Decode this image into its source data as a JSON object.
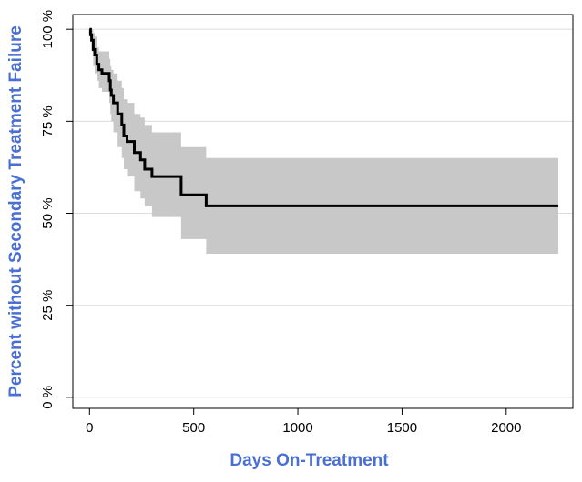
{
  "chart_data": {
    "type": "line",
    "title": "",
    "xlabel": "Days  On-Treatment",
    "ylabel": "Percent without Secondary Treatment Failure",
    "xlim": [
      -80,
      2320
    ],
    "ylim": [
      -3,
      104
    ],
    "x_ticks": [
      {
        "value": 0,
        "label": "0"
      },
      {
        "value": 500,
        "label": "500"
      },
      {
        "value": 1000,
        "label": "1000"
      },
      {
        "value": 1500,
        "label": "1500"
      },
      {
        "value": 2000,
        "label": "2000"
      }
    ],
    "y_ticks": [
      {
        "value": 0,
        "label": "0 %"
      },
      {
        "value": 25,
        "label": "25 %"
      },
      {
        "value": 50,
        "label": "50 %"
      },
      {
        "value": 75,
        "label": "75 %"
      },
      {
        "value": 100,
        "label": "100 %"
      }
    ],
    "grid": "horizontal",
    "colors": {
      "axis_title": "#4a6fd4",
      "survival_line": "#000000",
      "confidence_band": "#c8c8c8",
      "grid": "#dcdcdc"
    },
    "series": [
      {
        "role": "survival",
        "steps": [
          [
            0,
            100
          ],
          [
            5,
            98.5
          ],
          [
            10,
            97
          ],
          [
            18,
            94.5
          ],
          [
            25,
            93
          ],
          [
            35,
            90.5
          ],
          [
            45,
            89
          ],
          [
            60,
            88
          ],
          [
            95,
            86
          ],
          [
            100,
            83.5
          ],
          [
            105,
            82
          ],
          [
            115,
            80
          ],
          [
            135,
            77
          ],
          [
            155,
            74
          ],
          [
            165,
            71
          ],
          [
            180,
            69.5
          ],
          [
            215,
            66.5
          ],
          [
            245,
            64.5
          ],
          [
            265,
            62
          ],
          [
            300,
            60
          ],
          [
            440,
            55
          ],
          [
            560,
            52
          ],
          [
            2250,
            52
          ]
        ]
      },
      {
        "role": "confidence-band",
        "steps": [
          {
            "x": 0,
            "lower": 100,
            "upper": 100
          },
          {
            "x": 5,
            "lower": 97,
            "upper": 100
          },
          {
            "x": 10,
            "lower": 94,
            "upper": 100
          },
          {
            "x": 18,
            "lower": 90,
            "upper": 99
          },
          {
            "x": 25,
            "lower": 88,
            "upper": 98
          },
          {
            "x": 35,
            "lower": 86,
            "upper": 95
          },
          {
            "x": 45,
            "lower": 84,
            "upper": 94
          },
          {
            "x": 60,
            "lower": 83,
            "upper": 94
          },
          {
            "x": 95,
            "lower": 80,
            "upper": 92
          },
          {
            "x": 100,
            "lower": 77,
            "upper": 90
          },
          {
            "x": 105,
            "lower": 75,
            "upper": 89
          },
          {
            "x": 115,
            "lower": 72,
            "upper": 88
          },
          {
            "x": 135,
            "lower": 68,
            "upper": 86
          },
          {
            "x": 155,
            "lower": 65,
            "upper": 84
          },
          {
            "x": 165,
            "lower": 62,
            "upper": 81
          },
          {
            "x": 180,
            "lower": 60,
            "upper": 80
          },
          {
            "x": 215,
            "lower": 56,
            "upper": 77
          },
          {
            "x": 245,
            "lower": 54,
            "upper": 76
          },
          {
            "x": 265,
            "lower": 52,
            "upper": 74
          },
          {
            "x": 300,
            "lower": 49,
            "upper": 72
          },
          {
            "x": 440,
            "lower": 43,
            "upper": 68
          },
          {
            "x": 560,
            "lower": 39,
            "upper": 65
          },
          {
            "x": 2250,
            "lower": 39,
            "upper": 65
          }
        ]
      }
    ]
  }
}
